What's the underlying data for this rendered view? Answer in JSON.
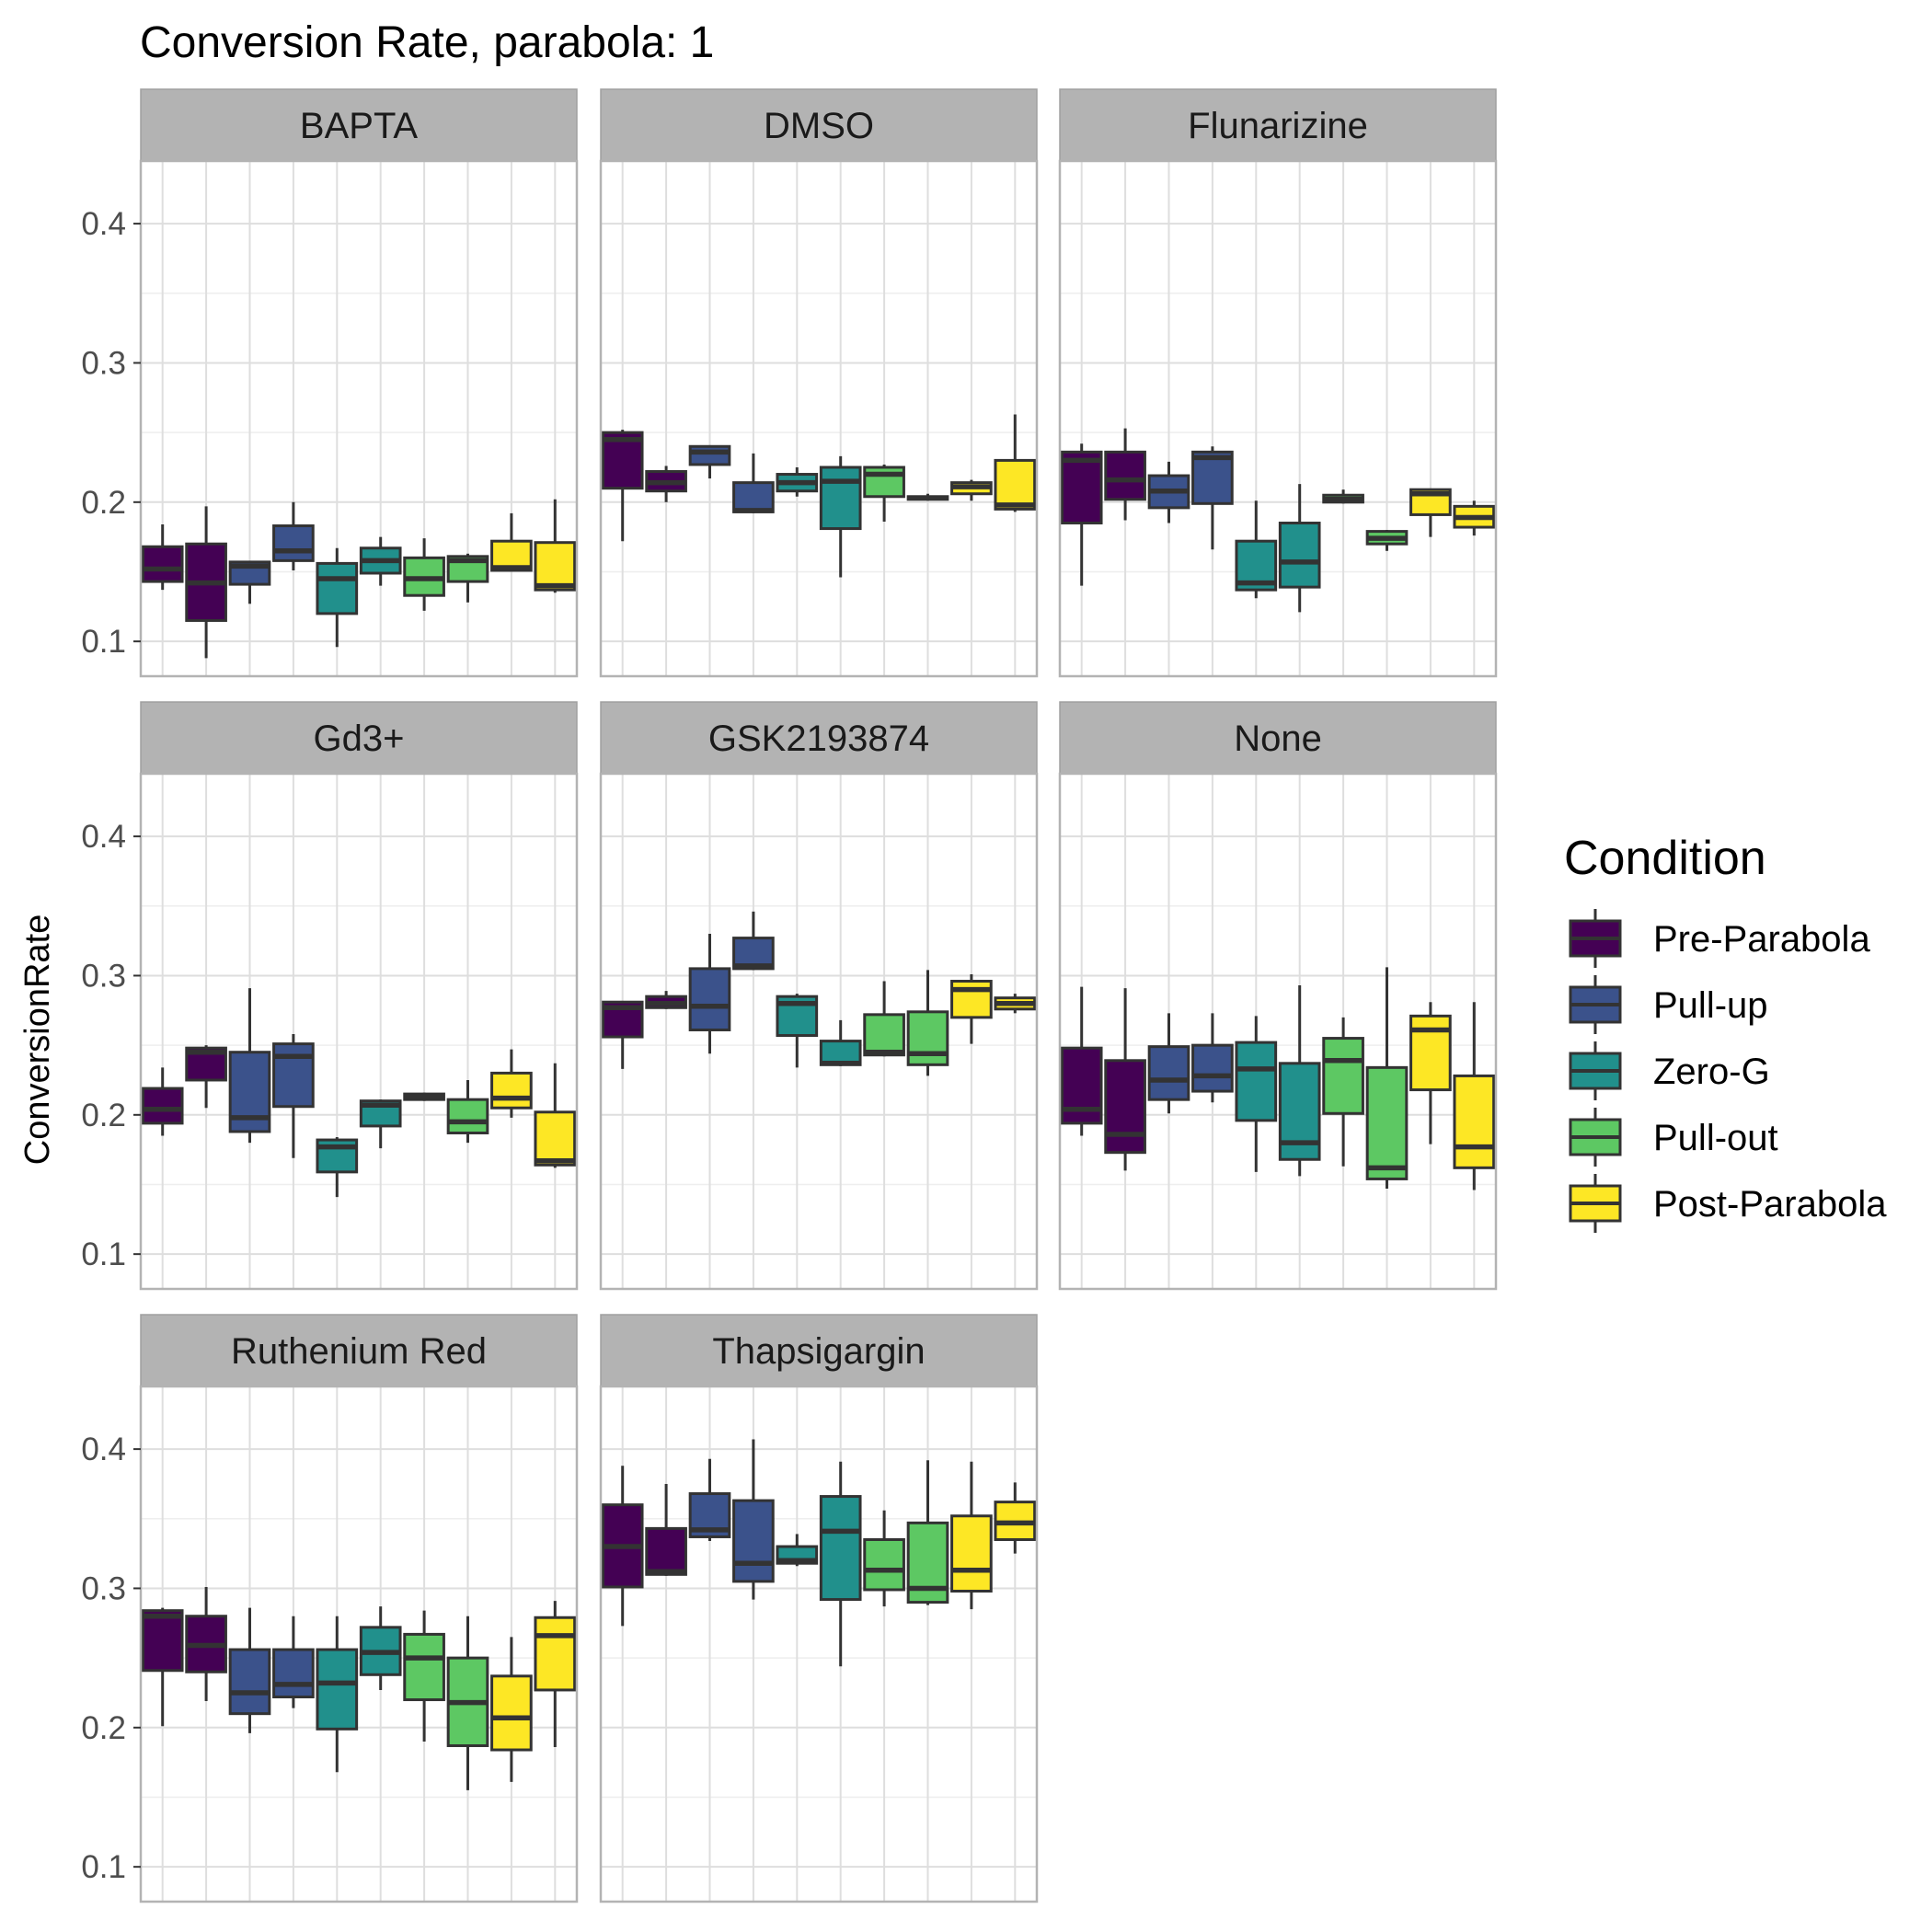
{
  "chart_data": {
    "type": "boxplot",
    "title": "Conversion Rate, parabola: 1",
    "ylabel": "ConversionRate",
    "xlabel": "",
    "ylim": [
      0.075,
      0.445
    ],
    "yticks": [
      0.1,
      0.2,
      0.3,
      0.4
    ],
    "ytick_labels": [
      "0.1",
      "0.2",
      "0.3",
      "0.4"
    ],
    "grid": true,
    "legend": {
      "title": "Condition",
      "position": "right",
      "entries": [
        {
          "name": "Pre-Parabola",
          "color": "#440154"
        },
        {
          "name": "Pull-up",
          "color": "#3B528B"
        },
        {
          "name": "Zero-G",
          "color": "#21908C"
        },
        {
          "name": "Pull-out",
          "color": "#5DC863"
        },
        {
          "name": "Post-Parabola",
          "color": "#FDE725"
        }
      ]
    },
    "facets": [
      {
        "label": "BAPTA",
        "boxes": [
          {
            "c": 0,
            "whisker_low": 0.137,
            "q1": 0.143,
            "median": 0.152,
            "q3": 0.168,
            "whisker_high": 0.184
          },
          {
            "c": 0,
            "whisker_low": 0.088,
            "q1": 0.115,
            "median": 0.142,
            "q3": 0.17,
            "whisker_high": 0.197
          },
          {
            "c": 1,
            "whisker_low": 0.127,
            "q1": 0.141,
            "median": 0.154,
            "q3": 0.157,
            "whisker_high": 0.157
          },
          {
            "c": 1,
            "whisker_low": 0.151,
            "q1": 0.158,
            "median": 0.165,
            "q3": 0.183,
            "whisker_high": 0.2
          },
          {
            "c": 2,
            "whisker_low": 0.096,
            "q1": 0.12,
            "median": 0.145,
            "q3": 0.156,
            "whisker_high": 0.167
          },
          {
            "c": 2,
            "whisker_low": 0.14,
            "q1": 0.149,
            "median": 0.158,
            "q3": 0.167,
            "whisker_high": 0.175
          },
          {
            "c": 3,
            "whisker_low": 0.122,
            "q1": 0.133,
            "median": 0.145,
            "q3": 0.16,
            "whisker_high": 0.174
          },
          {
            "c": 3,
            "whisker_low": 0.128,
            "q1": 0.143,
            "median": 0.158,
            "q3": 0.161,
            "whisker_high": 0.163
          },
          {
            "c": 4,
            "whisker_low": 0.15,
            "q1": 0.151,
            "median": 0.153,
            "q3": 0.172,
            "whisker_high": 0.192
          },
          {
            "c": 4,
            "whisker_low": 0.135,
            "q1": 0.137,
            "median": 0.14,
            "q3": 0.171,
            "whisker_high": 0.202
          }
        ]
      },
      {
        "label": "DMSO",
        "boxes": [
          {
            "c": 0,
            "whisker_low": 0.172,
            "q1": 0.21,
            "median": 0.245,
            "q3": 0.25,
            "whisker_high": 0.252
          },
          {
            "c": 0,
            "whisker_low": 0.2,
            "q1": 0.208,
            "median": 0.214,
            "q3": 0.222,
            "whisker_high": 0.226
          },
          {
            "c": 1,
            "whisker_low": 0.217,
            "q1": 0.227,
            "median": 0.236,
            "q3": 0.24,
            "whisker_high": 0.24
          },
          {
            "c": 1,
            "whisker_low": 0.192,
            "q1": 0.193,
            "median": 0.194,
            "q3": 0.214,
            "whisker_high": 0.235
          },
          {
            "c": 2,
            "whisker_low": 0.204,
            "q1": 0.208,
            "median": 0.214,
            "q3": 0.22,
            "whisker_high": 0.225
          },
          {
            "c": 2,
            "whisker_low": 0.146,
            "q1": 0.181,
            "median": 0.215,
            "q3": 0.225,
            "whisker_high": 0.233
          },
          {
            "c": 3,
            "whisker_low": 0.186,
            "q1": 0.204,
            "median": 0.22,
            "q3": 0.225,
            "whisker_high": 0.227
          },
          {
            "c": 3,
            "whisker_low": 0.201,
            "q1": 0.202,
            "median": 0.203,
            "q3": 0.204,
            "whisker_high": 0.206
          },
          {
            "c": 4,
            "whisker_low": 0.201,
            "q1": 0.206,
            "median": 0.211,
            "q3": 0.214,
            "whisker_high": 0.216
          },
          {
            "c": 4,
            "whisker_low": 0.193,
            "q1": 0.195,
            "median": 0.198,
            "q3": 0.23,
            "whisker_high": 0.263
          }
        ]
      },
      {
        "label": "Flunarizine",
        "boxes": [
          {
            "c": 0,
            "whisker_low": 0.14,
            "q1": 0.185,
            "median": 0.23,
            "q3": 0.236,
            "whisker_high": 0.242
          },
          {
            "c": 0,
            "whisker_low": 0.187,
            "q1": 0.202,
            "median": 0.216,
            "q3": 0.236,
            "whisker_high": 0.253
          },
          {
            "c": 1,
            "whisker_low": 0.185,
            "q1": 0.196,
            "median": 0.208,
            "q3": 0.219,
            "whisker_high": 0.229
          },
          {
            "c": 1,
            "whisker_low": 0.166,
            "q1": 0.199,
            "median": 0.232,
            "q3": 0.236,
            "whisker_high": 0.24
          },
          {
            "c": 2,
            "whisker_low": 0.131,
            "q1": 0.137,
            "median": 0.142,
            "q3": 0.172,
            "whisker_high": 0.201
          },
          {
            "c": 2,
            "whisker_low": 0.121,
            "q1": 0.139,
            "median": 0.157,
            "q3": 0.185,
            "whisker_high": 0.213
          },
          {
            "c": 3,
            "whisker_low": 0.199,
            "q1": 0.2,
            "median": 0.202,
            "q3": 0.205,
            "whisker_high": 0.209
          },
          {
            "c": 3,
            "whisker_low": 0.165,
            "q1": 0.17,
            "median": 0.174,
            "q3": 0.179,
            "whisker_high": 0.18
          },
          {
            "c": 4,
            "whisker_low": 0.175,
            "q1": 0.191,
            "median": 0.206,
            "q3": 0.209,
            "whisker_high": 0.209
          },
          {
            "c": 4,
            "whisker_low": 0.176,
            "q1": 0.182,
            "median": 0.189,
            "q3": 0.197,
            "whisker_high": 0.201
          }
        ]
      },
      {
        "label": "Gd3+",
        "boxes": [
          {
            "c": 0,
            "whisker_low": 0.185,
            "q1": 0.194,
            "median": 0.204,
            "q3": 0.219,
            "whisker_high": 0.234
          },
          {
            "c": 0,
            "whisker_low": 0.205,
            "q1": 0.225,
            "median": 0.245,
            "q3": 0.248,
            "whisker_high": 0.25
          },
          {
            "c": 1,
            "whisker_low": 0.18,
            "q1": 0.188,
            "median": 0.198,
            "q3": 0.245,
            "whisker_high": 0.291
          },
          {
            "c": 1,
            "whisker_low": 0.169,
            "q1": 0.206,
            "median": 0.242,
            "q3": 0.251,
            "whisker_high": 0.258
          },
          {
            "c": 2,
            "whisker_low": 0.141,
            "q1": 0.159,
            "median": 0.177,
            "q3": 0.182,
            "whisker_high": 0.184
          },
          {
            "c": 2,
            "whisker_low": 0.176,
            "q1": 0.192,
            "median": 0.207,
            "q3": 0.21,
            "whisker_high": 0.211
          },
          {
            "c": 3,
            "whisker_low": 0.21,
            "q1": 0.211,
            "median": 0.213,
            "q3": 0.215,
            "whisker_high": 0.216
          },
          {
            "c": 3,
            "whisker_low": 0.18,
            "q1": 0.187,
            "median": 0.195,
            "q3": 0.211,
            "whisker_high": 0.225
          },
          {
            "c": 4,
            "whisker_low": 0.198,
            "q1": 0.205,
            "median": 0.212,
            "q3": 0.23,
            "whisker_high": 0.247
          },
          {
            "c": 4,
            "whisker_low": 0.162,
            "q1": 0.164,
            "median": 0.167,
            "q3": 0.202,
            "whisker_high": 0.237
          }
        ]
      },
      {
        "label": "GSK2193874",
        "boxes": [
          {
            "c": 0,
            "whisker_low": 0.233,
            "q1": 0.256,
            "median": 0.277,
            "q3": 0.281,
            "whisker_high": 0.281
          },
          {
            "c": 0,
            "whisker_low": 0.276,
            "q1": 0.277,
            "median": 0.28,
            "q3": 0.285,
            "whisker_high": 0.289
          },
          {
            "c": 1,
            "whisker_low": 0.244,
            "q1": 0.261,
            "median": 0.278,
            "q3": 0.305,
            "whisker_high": 0.33
          },
          {
            "c": 1,
            "whisker_low": 0.304,
            "q1": 0.305,
            "median": 0.307,
            "q3": 0.327,
            "whisker_high": 0.346
          },
          {
            "c": 2,
            "whisker_low": 0.234,
            "q1": 0.257,
            "median": 0.28,
            "q3": 0.285,
            "whisker_high": 0.287
          },
          {
            "c": 2,
            "whisker_low": 0.235,
            "q1": 0.236,
            "median": 0.237,
            "q3": 0.253,
            "whisker_high": 0.268
          },
          {
            "c": 3,
            "whisker_low": 0.242,
            "q1": 0.243,
            "median": 0.245,
            "q3": 0.272,
            "whisker_high": 0.296
          },
          {
            "c": 3,
            "whisker_low": 0.228,
            "q1": 0.236,
            "median": 0.244,
            "q3": 0.274,
            "whisker_high": 0.304
          },
          {
            "c": 4,
            "whisker_low": 0.251,
            "q1": 0.27,
            "median": 0.29,
            "q3": 0.296,
            "whisker_high": 0.301
          },
          {
            "c": 4,
            "whisker_low": 0.273,
            "q1": 0.276,
            "median": 0.28,
            "q3": 0.284,
            "whisker_high": 0.287
          }
        ]
      },
      {
        "label": "None",
        "boxes": [
          {
            "c": 0,
            "whisker_low": 0.185,
            "q1": 0.194,
            "median": 0.204,
            "q3": 0.248,
            "whisker_high": 0.292
          },
          {
            "c": 0,
            "whisker_low": 0.16,
            "q1": 0.173,
            "median": 0.186,
            "q3": 0.239,
            "whisker_high": 0.291
          },
          {
            "c": 1,
            "whisker_low": 0.201,
            "q1": 0.211,
            "median": 0.225,
            "q3": 0.249,
            "whisker_high": 0.273
          },
          {
            "c": 1,
            "whisker_low": 0.209,
            "q1": 0.217,
            "median": 0.228,
            "q3": 0.25,
            "whisker_high": 0.273
          },
          {
            "c": 2,
            "whisker_low": 0.159,
            "q1": 0.196,
            "median": 0.233,
            "q3": 0.252,
            "whisker_high": 0.271
          },
          {
            "c": 2,
            "whisker_low": 0.156,
            "q1": 0.168,
            "median": 0.18,
            "q3": 0.237,
            "whisker_high": 0.293
          },
          {
            "c": 3,
            "whisker_low": 0.163,
            "q1": 0.201,
            "median": 0.239,
            "q3": 0.255,
            "whisker_high": 0.27
          },
          {
            "c": 3,
            "whisker_low": 0.147,
            "q1": 0.154,
            "median": 0.162,
            "q3": 0.234,
            "whisker_high": 0.306
          },
          {
            "c": 4,
            "whisker_low": 0.179,
            "q1": 0.218,
            "median": 0.261,
            "q3": 0.271,
            "whisker_high": 0.281
          },
          {
            "c": 4,
            "whisker_low": 0.146,
            "q1": 0.162,
            "median": 0.177,
            "q3": 0.228,
            "whisker_high": 0.281
          }
        ]
      },
      {
        "label": "Ruthenium Red",
        "boxes": [
          {
            "c": 0,
            "whisker_low": 0.201,
            "q1": 0.241,
            "median": 0.28,
            "q3": 0.284,
            "whisker_high": 0.286
          },
          {
            "c": 0,
            "whisker_low": 0.219,
            "q1": 0.24,
            "median": 0.259,
            "q3": 0.28,
            "whisker_high": 0.301
          },
          {
            "c": 1,
            "whisker_low": 0.196,
            "q1": 0.21,
            "median": 0.225,
            "q3": 0.256,
            "whisker_high": 0.286
          },
          {
            "c": 1,
            "whisker_low": 0.214,
            "q1": 0.222,
            "median": 0.231,
            "q3": 0.256,
            "whisker_high": 0.28
          },
          {
            "c": 2,
            "whisker_low": 0.168,
            "q1": 0.199,
            "median": 0.232,
            "q3": 0.256,
            "whisker_high": 0.28
          },
          {
            "c": 2,
            "whisker_low": 0.227,
            "q1": 0.238,
            "median": 0.254,
            "q3": 0.272,
            "whisker_high": 0.287
          },
          {
            "c": 3,
            "whisker_low": 0.19,
            "q1": 0.22,
            "median": 0.25,
            "q3": 0.267,
            "whisker_high": 0.284
          },
          {
            "c": 3,
            "whisker_low": 0.155,
            "q1": 0.187,
            "median": 0.218,
            "q3": 0.25,
            "whisker_high": 0.28
          },
          {
            "c": 4,
            "whisker_low": 0.161,
            "q1": 0.184,
            "median": 0.207,
            "q3": 0.237,
            "whisker_high": 0.265
          },
          {
            "c": 4,
            "whisker_low": 0.186,
            "q1": 0.227,
            "median": 0.266,
            "q3": 0.279,
            "whisker_high": 0.291
          }
        ]
      },
      {
        "label": "Thapsigargin",
        "boxes": [
          {
            "c": 0,
            "whisker_low": 0.273,
            "q1": 0.301,
            "median": 0.33,
            "q3": 0.36,
            "whisker_high": 0.388
          },
          {
            "c": 0,
            "whisker_low": 0.309,
            "q1": 0.31,
            "median": 0.312,
            "q3": 0.343,
            "whisker_high": 0.375
          },
          {
            "c": 1,
            "whisker_low": 0.334,
            "q1": 0.337,
            "median": 0.342,
            "q3": 0.368,
            "whisker_high": 0.393
          },
          {
            "c": 1,
            "whisker_low": 0.292,
            "q1": 0.305,
            "median": 0.318,
            "q3": 0.363,
            "whisker_high": 0.407
          },
          {
            "c": 2,
            "whisker_low": 0.316,
            "q1": 0.318,
            "median": 0.32,
            "q3": 0.33,
            "whisker_high": 0.339
          },
          {
            "c": 2,
            "whisker_low": 0.244,
            "q1": 0.292,
            "median": 0.341,
            "q3": 0.366,
            "whisker_high": 0.391
          },
          {
            "c": 3,
            "whisker_low": 0.287,
            "q1": 0.299,
            "median": 0.313,
            "q3": 0.335,
            "whisker_high": 0.356
          },
          {
            "c": 3,
            "whisker_low": 0.288,
            "q1": 0.29,
            "median": 0.3,
            "q3": 0.347,
            "whisker_high": 0.392
          },
          {
            "c": 4,
            "whisker_low": 0.285,
            "q1": 0.298,
            "median": 0.313,
            "q3": 0.352,
            "whisker_high": 0.391
          },
          {
            "c": 4,
            "whisker_low": 0.325,
            "q1": 0.335,
            "median": 0.347,
            "q3": 0.362,
            "whisker_high": 0.376
          }
        ]
      }
    ]
  }
}
